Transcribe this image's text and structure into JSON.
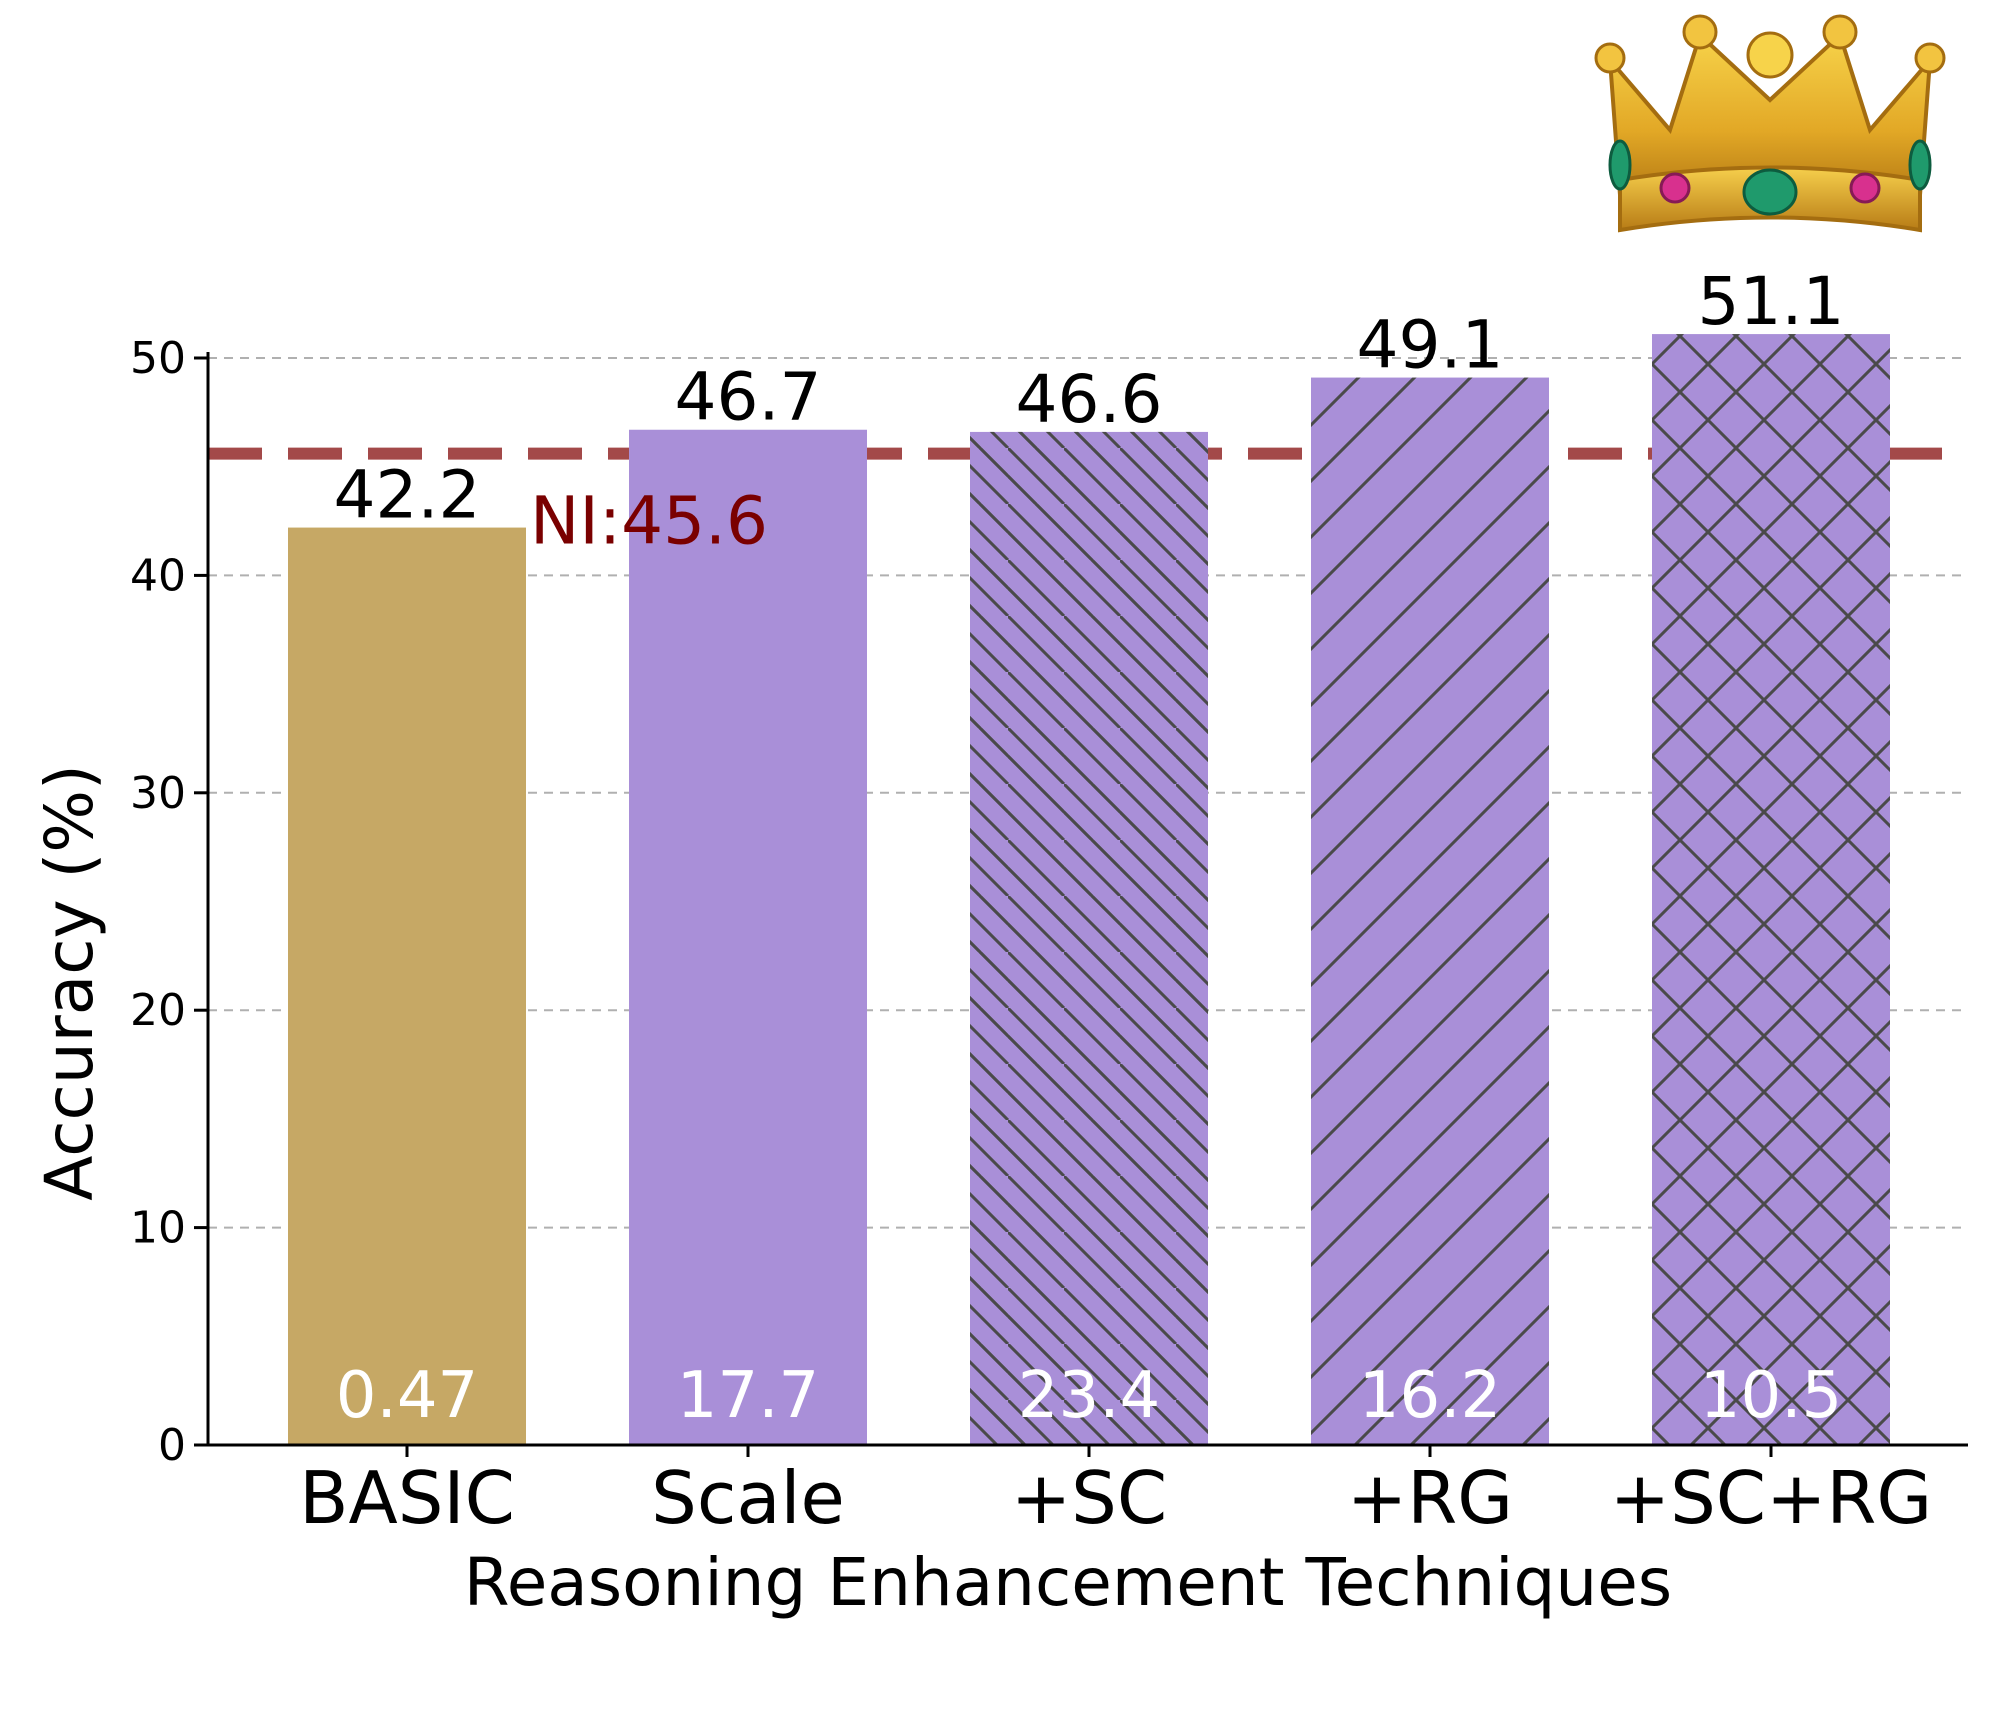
{
  "chart_data": {
    "type": "bar",
    "xlabel": "Reasoning Enhancement Techniques",
    "ylabel": "Accuracy (%)",
    "ylim": [
      0,
      50.0
    ],
    "yticks": [
      0,
      10,
      20,
      30,
      40,
      50
    ],
    "grid": "horizontal dashed",
    "categories": [
      "BASIC",
      "Scale",
      "+SC",
      "+RG",
      "+SC+RG"
    ],
    "values": [
      42.2,
      46.7,
      46.6,
      49.1,
      51.1
    ],
    "value_labels": [
      "42.2",
      "46.7",
      "46.6",
      "49.1",
      "51.1"
    ],
    "inner_labels": [
      "0.47",
      "17.7",
      "23.4",
      "16.2",
      "10.5"
    ],
    "hatches": [
      "none",
      "none",
      "backslash",
      "slash",
      "cross"
    ],
    "colors": {
      "basic": "#c6a865",
      "enhanced": "#a98fd8",
      "reference": "#9c3a3a",
      "reference_text": "#7a0000",
      "hatch": "#4a4a4a",
      "grid": "#b0b0b0"
    },
    "reference_line": {
      "value": 45.6,
      "label": "NI:45.6"
    },
    "decoration": {
      "icon": "crown-icon",
      "above_category": "+SC+RG"
    }
  }
}
